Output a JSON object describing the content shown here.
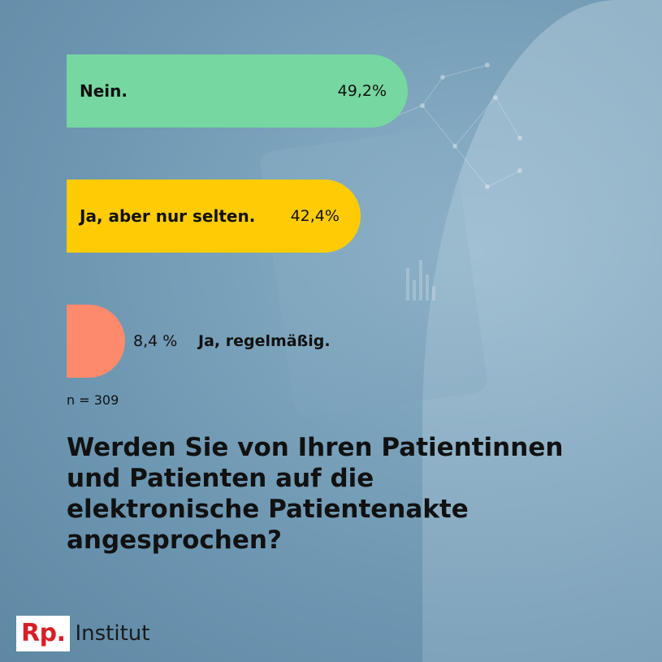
{
  "chart_data": {
    "type": "bar",
    "orientation": "horizontal",
    "categories": [
      "Nein.",
      "Ja, aber nur selten.",
      "Ja, regelmäßig."
    ],
    "values": [
      49.2,
      42.4,
      8.4
    ],
    "value_labels": [
      "49,2%",
      "42,4%",
      "8,4 %"
    ],
    "colors": [
      "#76d7a0",
      "#ffcb05",
      "#fd8a6c"
    ],
    "xlim": [
      0,
      100
    ],
    "note": "n = 309",
    "title": "Werden Sie von Ihren Patientinnen und Patienten auf die elektronische Patientenakte angesprochen?"
  },
  "brand": {
    "logo_mark": "Rp.",
    "logo_text": "Institut",
    "color": "#d61f26"
  }
}
